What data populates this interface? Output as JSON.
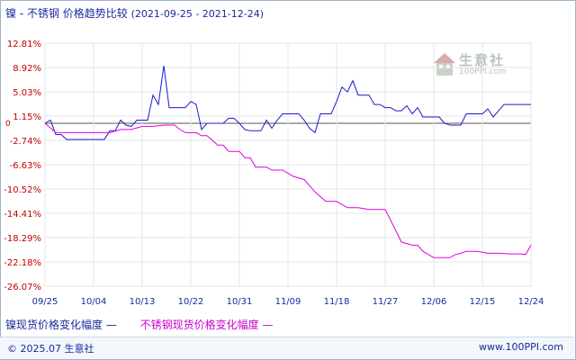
{
  "title": {
    "main": "镍 - 不锈钢 价格趋势比较",
    "range": "(2021-09-25 - 2021-12-24)"
  },
  "legend": {
    "series1_label": "镍现货价格变化幅度",
    "series2_label": "不锈钢现货价格变化幅度"
  },
  "footer": {
    "copyright": "© 2025.07 生意社",
    "url": "www.100PPI.com"
  },
  "watermark": {
    "name": "生意社",
    "url": "100PPI.com"
  },
  "colors": {
    "series1": "#1a1acc",
    "series2": "#dd00dd",
    "axis_text": "#c00000",
    "grid": "#e6e6e6",
    "zero_line": "#555555"
  },
  "chart_data": {
    "type": "line",
    "title": "镍 - 不锈钢 价格趋势比较",
    "ylim": [
      -26.07,
      12.81
    ],
    "y_ticks": [
      "12.81%",
      "8.92%",
      "5.03%",
      "1.15%",
      "-2.74%",
      "-6.63%",
      "-10.52%",
      "-14.41%",
      "-18.29%",
      "-22.18%",
      "-26.07%"
    ],
    "y_tick_values": [
      12.81,
      8.92,
      5.03,
      1.15,
      -2.74,
      -6.63,
      -10.52,
      -14.41,
      -18.29,
      -22.18,
      -26.07
    ],
    "zero_label": "0",
    "x_ticks": [
      "09/25",
      "10/04",
      "10/13",
      "10/22",
      "10/31",
      "11/09",
      "11/18",
      "11/27",
      "12/06",
      "12/15",
      "12/24"
    ],
    "x_tick_days": [
      0,
      9,
      18,
      27,
      36,
      45,
      54,
      63,
      72,
      81,
      90
    ],
    "xlim_days": [
      0,
      90
    ],
    "grid": true,
    "legend_position": "bottom",
    "series": [
      {
        "name": "镍现货价格变化幅度",
        "points": [
          [
            0,
            0
          ],
          [
            1,
            0.5
          ],
          [
            2,
            -1.8
          ],
          [
            3,
            -1.8
          ],
          [
            4,
            -2.6
          ],
          [
            5,
            -2.6
          ],
          [
            6,
            -2.6
          ],
          [
            7,
            -2.6
          ],
          [
            8,
            -2.6
          ],
          [
            9,
            -2.6
          ],
          [
            10,
            -2.6
          ],
          [
            11,
            -2.6
          ],
          [
            12,
            -1.2
          ],
          [
            13,
            -1.2
          ],
          [
            14,
            0.5
          ],
          [
            15,
            -0.3
          ],
          [
            16,
            -0.5
          ],
          [
            17,
            0.5
          ],
          [
            18,
            0.5
          ],
          [
            19,
            0.5
          ],
          [
            20,
            4.5
          ],
          [
            21,
            3.0
          ],
          [
            22,
            9.2
          ],
          [
            23,
            2.5
          ],
          [
            24,
            2.5
          ],
          [
            25,
            2.5
          ],
          [
            26,
            2.5
          ],
          [
            27,
            3.5
          ],
          [
            28,
            3.0
          ],
          [
            29,
            -1.0
          ],
          [
            30,
            0
          ],
          [
            31,
            0
          ],
          [
            32,
            0
          ],
          [
            33,
            0
          ],
          [
            34,
            0.8
          ],
          [
            35,
            0.8
          ],
          [
            36,
            0
          ],
          [
            37,
            -1.0
          ],
          [
            38,
            -1.2
          ],
          [
            39,
            -1.2
          ],
          [
            40,
            -1.2
          ],
          [
            41,
            0.5
          ],
          [
            42,
            -0.8
          ],
          [
            43,
            0.5
          ],
          [
            44,
            1.5
          ],
          [
            45,
            1.5
          ],
          [
            46,
            1.5
          ],
          [
            47,
            1.5
          ],
          [
            48,
            0.5
          ],
          [
            49,
            -0.8
          ],
          [
            50,
            -1.5
          ],
          [
            51,
            1.5
          ],
          [
            52,
            1.5
          ],
          [
            53,
            1.5
          ],
          [
            54,
            3.5
          ],
          [
            55,
            5.8
          ],
          [
            56,
            5.0
          ],
          [
            57,
            6.8
          ],
          [
            58,
            4.5
          ],
          [
            59,
            4.5
          ],
          [
            60,
            4.5
          ],
          [
            61,
            3.0
          ],
          [
            62,
            3.0
          ],
          [
            63,
            2.5
          ],
          [
            64,
            2.5
          ],
          [
            65,
            2.0
          ],
          [
            66,
            2.0
          ],
          [
            67,
            2.8
          ],
          [
            68,
            1.5
          ],
          [
            69,
            2.5
          ],
          [
            70,
            1.0
          ],
          [
            71,
            1.0
          ],
          [
            72,
            1.0
          ],
          [
            73,
            1.0
          ],
          [
            74,
            0
          ],
          [
            75,
            -0.3
          ],
          [
            76,
            -0.3
          ],
          [
            77,
            -0.3
          ],
          [
            78,
            1.5
          ],
          [
            79,
            1.5
          ],
          [
            80,
            1.5
          ],
          [
            81,
            1.5
          ],
          [
            82,
            2.3
          ],
          [
            83,
            1.0
          ],
          [
            84,
            2.0
          ],
          [
            85,
            3.0
          ],
          [
            86,
            3.0
          ],
          [
            90,
            3.0
          ]
        ]
      },
      {
        "name": "不锈钢现货价格变化幅度",
        "points": [
          [
            0,
            0
          ],
          [
            2,
            -1.5
          ],
          [
            4,
            -1.5
          ],
          [
            6,
            -1.5
          ],
          [
            8,
            -1.5
          ],
          [
            10,
            -1.5
          ],
          [
            12,
            -1.5
          ],
          [
            14,
            -1.0
          ],
          [
            16,
            -1.0
          ],
          [
            18,
            -0.5
          ],
          [
            20,
            -0.5
          ],
          [
            22,
            -0.3
          ],
          [
            24,
            -0.3
          ],
          [
            25,
            -1.0
          ],
          [
            26,
            -1.5
          ],
          [
            28,
            -1.5
          ],
          [
            29,
            -2.0
          ],
          [
            30,
            -2.0
          ],
          [
            32,
            -3.5
          ],
          [
            33,
            -3.5
          ],
          [
            34,
            -4.5
          ],
          [
            36,
            -4.5
          ],
          [
            37,
            -5.5
          ],
          [
            38,
            -5.5
          ],
          [
            39,
            -7.0
          ],
          [
            40,
            -7.0
          ],
          [
            41,
            -7.0
          ],
          [
            42,
            -7.5
          ],
          [
            44,
            -7.5
          ],
          [
            46,
            -8.5
          ],
          [
            48,
            -9.0
          ],
          [
            49,
            -10.0
          ],
          [
            50,
            -11.0
          ],
          [
            52,
            -12.5
          ],
          [
            54,
            -12.5
          ],
          [
            56,
            -13.5
          ],
          [
            58,
            -13.5
          ],
          [
            60,
            -13.8
          ],
          [
            62,
            -13.8
          ],
          [
            63,
            -13.8
          ],
          [
            64,
            -15.5
          ],
          [
            66,
            -19.0
          ],
          [
            68,
            -19.5
          ],
          [
            69,
            -19.5
          ],
          [
            70,
            -20.5
          ],
          [
            72,
            -21.5
          ],
          [
            74,
            -21.5
          ],
          [
            75,
            -21.5
          ],
          [
            76,
            -21.0
          ],
          [
            77,
            -20.8
          ],
          [
            78,
            -20.5
          ],
          [
            80,
            -20.5
          ],
          [
            82,
            -20.8
          ],
          [
            84,
            -20.8
          ],
          [
            86,
            -20.9
          ],
          [
            88,
            -20.9
          ],
          [
            89,
            -21.0
          ],
          [
            90,
            -19.5
          ]
        ]
      }
    ]
  }
}
